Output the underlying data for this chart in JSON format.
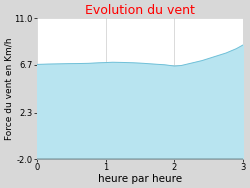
{
  "title": "Evolution du vent",
  "title_color": "#ff0000",
  "xlabel": "heure par heure",
  "ylabel": "Force du vent en Km/h",
  "background_color": "#d8d8d8",
  "plot_background_color": "#ffffff",
  "fill_color": "#b8e4f0",
  "line_color": "#70c0d8",
  "ylim": [
    -2.0,
    11.0
  ],
  "xlim": [
    0,
    3
  ],
  "yticks": [
    -2.0,
    2.3,
    6.7,
    11.0
  ],
  "xticks": [
    0,
    1,
    2,
    3
  ],
  "x": [
    0,
    0.15,
    0.3,
    0.45,
    0.6,
    0.75,
    0.9,
    1.0,
    1.1,
    1.25,
    1.4,
    1.55,
    1.7,
    1.85,
    2.0,
    2.1,
    2.2,
    2.4,
    2.6,
    2.75,
    2.9,
    3.0
  ],
  "y": [
    6.75,
    6.78,
    6.8,
    6.82,
    6.83,
    6.85,
    6.9,
    6.92,
    6.95,
    6.93,
    6.9,
    6.85,
    6.78,
    6.72,
    6.6,
    6.65,
    6.8,
    7.1,
    7.5,
    7.8,
    8.2,
    8.55
  ],
  "baseline": -2.0,
  "grid_color": "#cccccc",
  "tick_fontsize": 6,
  "label_fontsize": 6.5,
  "title_fontsize": 9,
  "xlabel_fontsize": 7.5
}
